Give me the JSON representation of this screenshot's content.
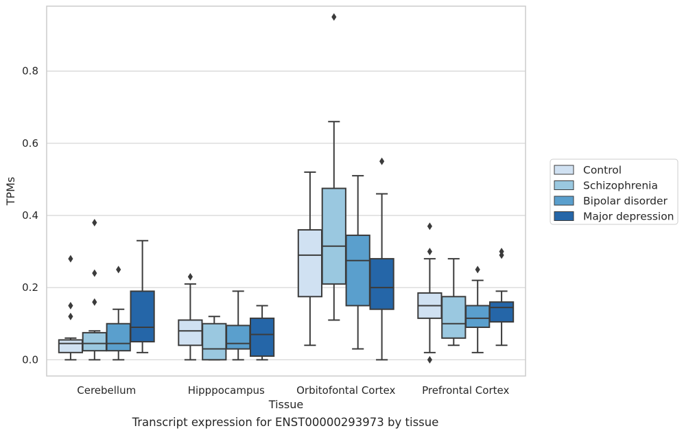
{
  "chart_data": {
    "type": "box",
    "xlabel": "Tissue",
    "ylabel": "TPMs",
    "categories": [
      "Cerebellum",
      "Hipppocampus",
      "Orbitofontal Cortex",
      "Prefrontal Cortex"
    ],
    "ylim": [
      -0.045,
      0.98
    ],
    "yticks": [
      "0.0",
      "0.2",
      "0.4",
      "0.6",
      "0.8"
    ],
    "ytick_values": [
      0.0,
      0.2,
      0.4,
      0.6,
      0.8
    ],
    "grid": "horizontal",
    "legend_position": "right",
    "series": [
      {
        "name": "Control",
        "color": "#d0e1f2",
        "boxes": [
          {
            "min": 0.0,
            "q1": 0.02,
            "median": 0.045,
            "q3": 0.055,
            "max": 0.06,
            "outliers": [
              0.12,
              0.15,
              0.28
            ]
          },
          {
            "min": 0.0,
            "q1": 0.04,
            "median": 0.08,
            "q3": 0.11,
            "max": 0.21,
            "outliers": [
              0.23
            ]
          },
          {
            "min": 0.04,
            "q1": 0.175,
            "median": 0.29,
            "q3": 0.36,
            "max": 0.52,
            "outliers": []
          },
          {
            "min": 0.02,
            "q1": 0.115,
            "median": 0.15,
            "q3": 0.185,
            "max": 0.28,
            "outliers": [
              0.0,
              0.3,
              0.37
            ]
          }
        ]
      },
      {
        "name": "Schizophrenia",
        "color": "#9ac8e0",
        "boxes": [
          {
            "min": 0.0,
            "q1": 0.025,
            "median": 0.045,
            "q3": 0.075,
            "max": 0.08,
            "outliers": [
              0.16,
              0.24,
              0.38
            ]
          },
          {
            "min": 0.0,
            "q1": 0.0,
            "median": 0.03,
            "q3": 0.1,
            "max": 0.12,
            "outliers": []
          },
          {
            "min": 0.11,
            "q1": 0.21,
            "median": 0.315,
            "q3": 0.475,
            "max": 0.66,
            "outliers": [
              0.95
            ]
          },
          {
            "min": 0.04,
            "q1": 0.06,
            "median": 0.1,
            "q3": 0.175,
            "max": 0.28,
            "outliers": []
          }
        ]
      },
      {
        "name": "Bipolar disorder",
        "color": "#5a9fcd",
        "boxes": [
          {
            "min": 0.0,
            "q1": 0.025,
            "median": 0.045,
            "q3": 0.1,
            "max": 0.14,
            "outliers": [
              0.25
            ]
          },
          {
            "min": 0.0,
            "q1": 0.03,
            "median": 0.045,
            "q3": 0.095,
            "max": 0.19,
            "outliers": []
          },
          {
            "min": 0.03,
            "q1": 0.15,
            "median": 0.275,
            "q3": 0.345,
            "max": 0.51,
            "outliers": []
          },
          {
            "min": 0.02,
            "q1": 0.09,
            "median": 0.115,
            "q3": 0.15,
            "max": 0.22,
            "outliers": [
              0.25
            ]
          }
        ]
      },
      {
        "name": "Major depression",
        "color": "#2566a8",
        "boxes": [
          {
            "min": 0.02,
            "q1": 0.05,
            "median": 0.09,
            "q3": 0.19,
            "max": 0.33,
            "outliers": []
          },
          {
            "min": 0.0,
            "q1": 0.01,
            "median": 0.07,
            "q3": 0.115,
            "max": 0.15,
            "outliers": []
          },
          {
            "min": 0.0,
            "q1": 0.14,
            "median": 0.2,
            "q3": 0.28,
            "max": 0.46,
            "outliers": [
              0.55
            ]
          },
          {
            "min": 0.04,
            "q1": 0.105,
            "median": 0.145,
            "q3": 0.16,
            "max": 0.19,
            "outliers": [
              0.29,
              0.3
            ]
          }
        ]
      }
    ]
  },
  "caption": "Transcript expression for ENST00000293973 by tissue"
}
